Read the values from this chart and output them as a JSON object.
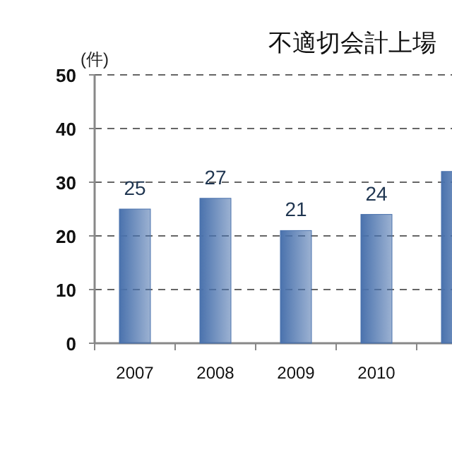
{
  "chart_data": {
    "type": "bar",
    "title": "不適切会計上場",
    "ylabel": "(件)",
    "categories": [
      "2007",
      "2008",
      "2009",
      "2010",
      null
    ],
    "values": [
      25,
      27,
      21,
      24,
      32
    ],
    "value_labels": [
      "25",
      "27",
      "21",
      "24",
      null
    ],
    "color": "#4a72ad",
    "ylim": [
      0,
      50
    ],
    "yticks": [
      0,
      10,
      20,
      30,
      40,
      50
    ],
    "grid": "y"
  }
}
